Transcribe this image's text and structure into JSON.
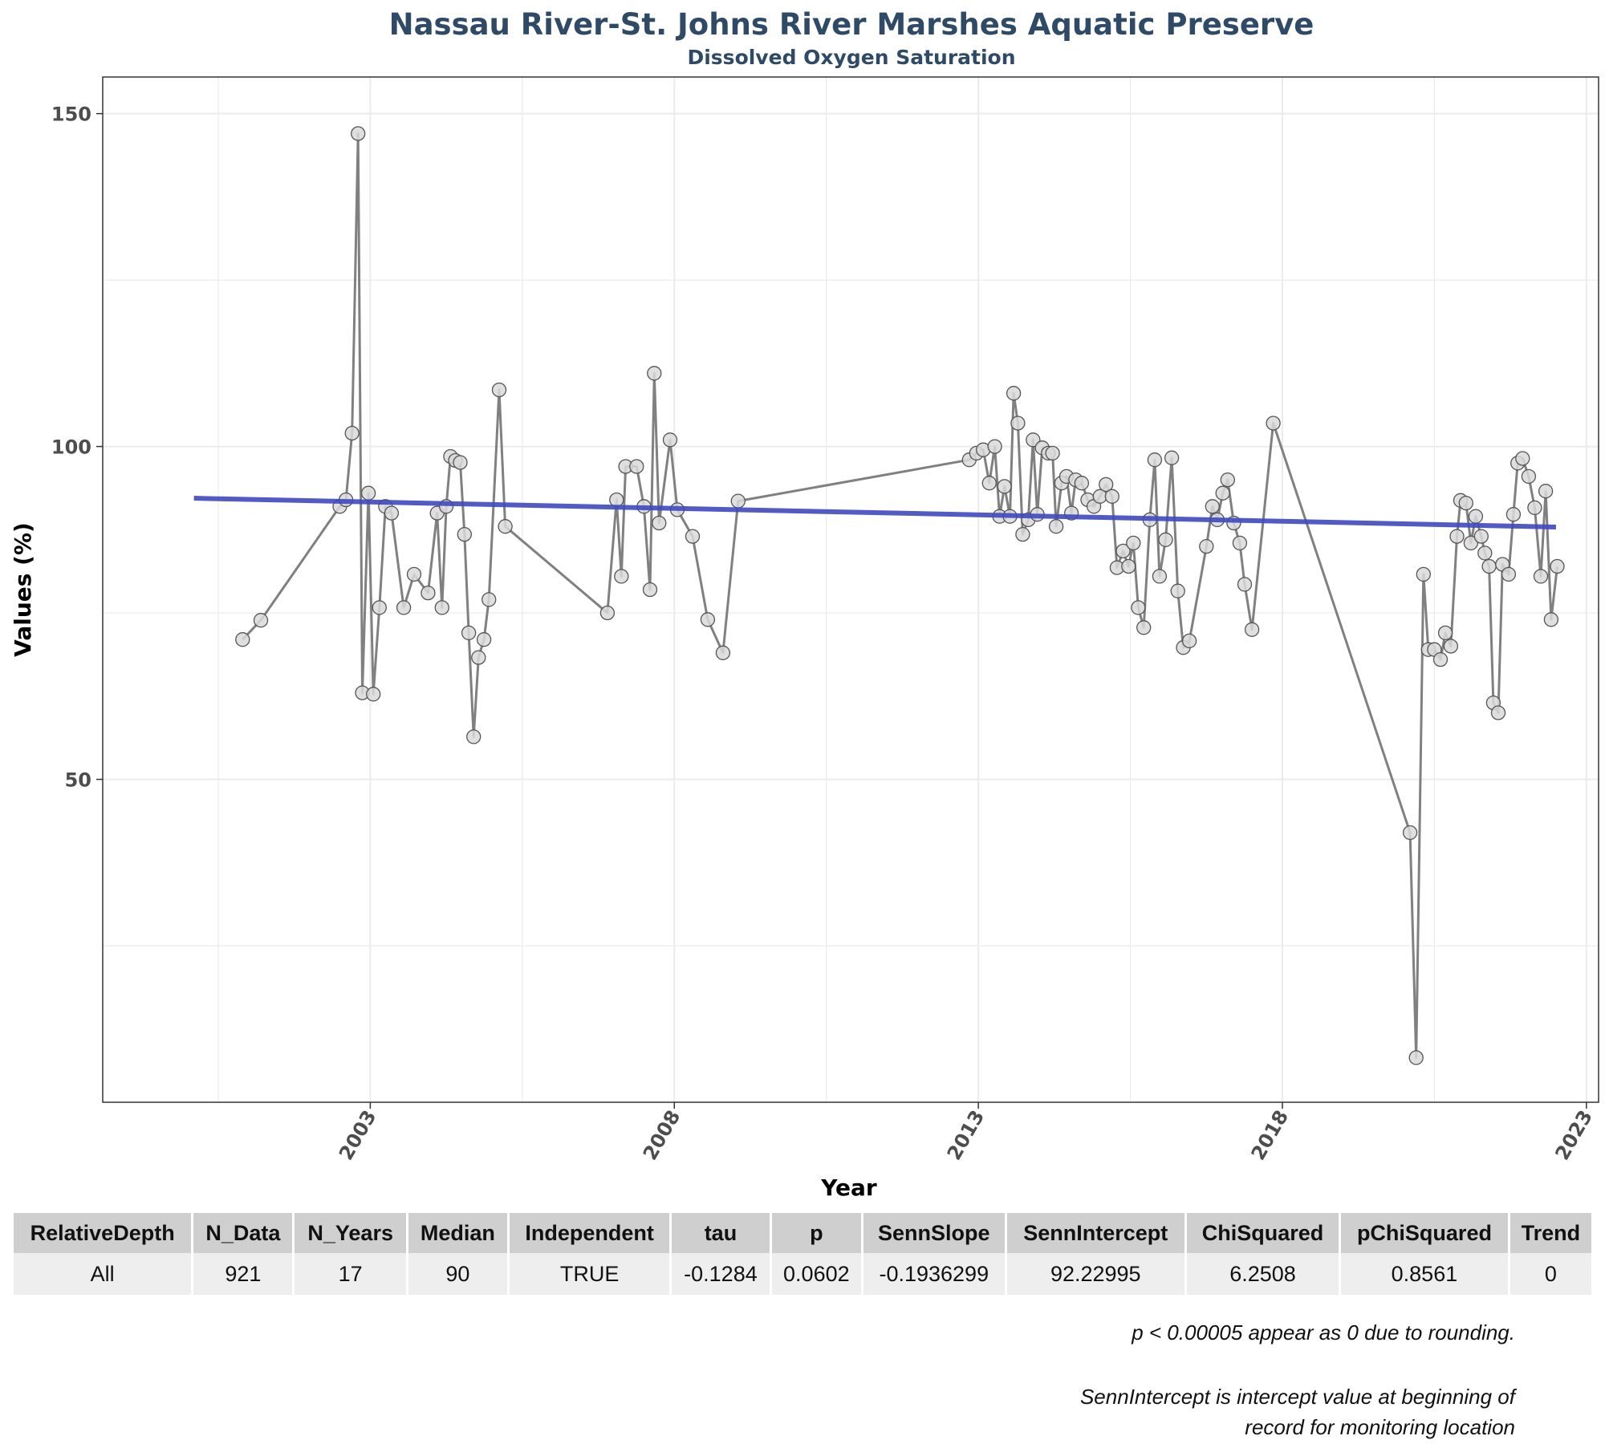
{
  "chart_data": {
    "type": "line",
    "title": "Nassau River-St. Johns River Marshes Aquatic Preserve",
    "subtitle": "Dissolved Oxygen Saturation",
    "xlabel": "Year",
    "ylabel": "Values (%)",
    "xlim": [
      1998.6,
      2023.2
    ],
    "ylim": [
      1.5,
      155.5
    ],
    "xticks": [
      2003,
      2008,
      2013,
      2018,
      2023
    ],
    "yticks": [
      50,
      100,
      150
    ],
    "grid": true,
    "legend": "none",
    "colors": {
      "line": "#808080",
      "point_fill": "#d9d9d9",
      "point_stroke": "#555555",
      "trend": "#3f48c0",
      "title": "#2f4a66"
    },
    "series": [
      {
        "values": [
          [
            2000.9,
            71.0
          ],
          [
            2001.2,
            73.9
          ],
          [
            2002.5,
            91.0
          ],
          [
            2002.6,
            92.0
          ],
          [
            2002.7,
            102.0
          ],
          [
            2002.8,
            147.0
          ],
          [
            2002.87,
            63.0
          ],
          [
            2002.97,
            93.0
          ],
          [
            2003.05,
            62.8
          ],
          [
            2003.15,
            75.8
          ],
          [
            2003.25,
            91.0
          ],
          [
            2003.35,
            90.0
          ],
          [
            2003.55,
            75.8
          ],
          [
            2003.72,
            80.8
          ],
          [
            2003.95,
            78.0
          ],
          [
            2004.1,
            90.0
          ],
          [
            2004.18,
            75.8
          ],
          [
            2004.25,
            91.0
          ],
          [
            2004.32,
            98.5
          ],
          [
            2004.4,
            97.9
          ],
          [
            2004.48,
            97.6
          ],
          [
            2004.55,
            86.8
          ],
          [
            2004.62,
            72.0
          ],
          [
            2004.7,
            56.4
          ],
          [
            2004.78,
            68.3
          ],
          [
            2004.87,
            71.0
          ],
          [
            2004.95,
            77.0
          ],
          [
            2005.12,
            108.5
          ],
          [
            2005.22,
            88.0
          ],
          [
            2006.9,
            75.0
          ],
          [
            2007.05,
            92.0
          ],
          [
            2007.13,
            80.5
          ],
          [
            2007.2,
            97.0
          ],
          [
            2007.38,
            97.0
          ],
          [
            2007.5,
            91.0
          ],
          [
            2007.6,
            78.5
          ],
          [
            2007.67,
            111.0
          ],
          [
            2007.75,
            88.5
          ],
          [
            2007.93,
            101.0
          ],
          [
            2008.05,
            90.5
          ],
          [
            2008.3,
            86.5
          ],
          [
            2008.55,
            74.0
          ],
          [
            2008.8,
            69.0
          ],
          [
            2009.05,
            91.8
          ],
          [
            2012.85,
            98.0
          ],
          [
            2012.97,
            99.0
          ],
          [
            2013.08,
            99.5
          ],
          [
            2013.18,
            94.5
          ],
          [
            2013.27,
            100.0
          ],
          [
            2013.35,
            89.5
          ],
          [
            2013.43,
            94.0
          ],
          [
            2013.52,
            89.5
          ],
          [
            2013.58,
            108.0
          ],
          [
            2013.65,
            103.5
          ],
          [
            2013.73,
            86.8
          ],
          [
            2013.82,
            89.0
          ],
          [
            2013.9,
            101.0
          ],
          [
            2013.97,
            89.8
          ],
          [
            2014.05,
            99.8
          ],
          [
            2014.15,
            99.0
          ],
          [
            2014.22,
            99.0
          ],
          [
            2014.28,
            88.0
          ],
          [
            2014.37,
            94.5
          ],
          [
            2014.45,
            95.5
          ],
          [
            2014.53,
            90.0
          ],
          [
            2014.6,
            95.0
          ],
          [
            2014.7,
            94.5
          ],
          [
            2014.8,
            92.0
          ],
          [
            2014.9,
            91.0
          ],
          [
            2015.0,
            92.5
          ],
          [
            2015.1,
            94.3
          ],
          [
            2015.2,
            92.5
          ],
          [
            2015.28,
            81.8
          ],
          [
            2015.38,
            84.3
          ],
          [
            2015.47,
            82.0
          ],
          [
            2015.55,
            85.5
          ],
          [
            2015.63,
            75.8
          ],
          [
            2015.72,
            72.8
          ],
          [
            2015.82,
            89.0
          ],
          [
            2015.9,
            98.0
          ],
          [
            2015.98,
            80.5
          ],
          [
            2016.08,
            86.0
          ],
          [
            2016.18,
            98.3
          ],
          [
            2016.28,
            78.3
          ],
          [
            2016.37,
            69.8
          ],
          [
            2016.47,
            70.8
          ],
          [
            2016.75,
            85.0
          ],
          [
            2016.85,
            91.0
          ],
          [
            2016.93,
            89.0
          ],
          [
            2017.02,
            93.0
          ],
          [
            2017.1,
            95.0
          ],
          [
            2017.2,
            88.5
          ],
          [
            2017.3,
            85.5
          ],
          [
            2017.38,
            79.3
          ],
          [
            2017.5,
            72.5
          ],
          [
            2017.85,
            103.5
          ],
          [
            2020.1,
            42.0
          ],
          [
            2020.2,
            8.2
          ],
          [
            2020.32,
            80.8
          ],
          [
            2020.4,
            69.5
          ],
          [
            2020.5,
            69.5
          ],
          [
            2020.6,
            68.0
          ],
          [
            2020.68,
            72.0
          ],
          [
            2020.77,
            70.0
          ],
          [
            2020.87,
            86.5
          ],
          [
            2020.93,
            91.9
          ],
          [
            2021.02,
            91.5
          ],
          [
            2021.1,
            85.5
          ],
          [
            2021.18,
            89.5
          ],
          [
            2021.27,
            86.5
          ],
          [
            2021.33,
            84.0
          ],
          [
            2021.4,
            82.0
          ],
          [
            2021.47,
            61.5
          ],
          [
            2021.55,
            60.0
          ],
          [
            2021.62,
            82.3
          ],
          [
            2021.72,
            80.8
          ],
          [
            2021.8,
            89.8
          ],
          [
            2021.87,
            97.5
          ],
          [
            2021.95,
            98.2
          ],
          [
            2022.05,
            95.5
          ],
          [
            2022.15,
            90.8
          ],
          [
            2022.25,
            80.5
          ],
          [
            2022.33,
            93.3
          ],
          [
            2022.42,
            74.0
          ],
          [
            2022.52,
            82.0
          ]
        ]
      }
    ],
    "trend": {
      "x": [
        2000.1,
        2022.5
      ],
      "y": [
        92.23,
        87.9
      ]
    }
  },
  "table": {
    "headers": [
      "RelativeDepth",
      "N_Data",
      "N_Years",
      "Median",
      "Independent",
      "tau",
      "p",
      "SennSlope",
      "SennIntercept",
      "ChiSquared",
      "pChiSquared",
      "Trend"
    ],
    "rows": [
      [
        "All",
        "921",
        "17",
        "90",
        "TRUE",
        "-0.1284",
        "0.0602",
        "-0.1936299",
        "92.22995",
        "6.2508",
        "0.8561",
        "0"
      ]
    ]
  },
  "footnotes": {
    "rounding": "p < 0.00005 appear as 0 due to rounding.",
    "intercept_line1": "SennIntercept is intercept value at beginning of",
    "intercept_line2": "record for monitoring location"
  }
}
